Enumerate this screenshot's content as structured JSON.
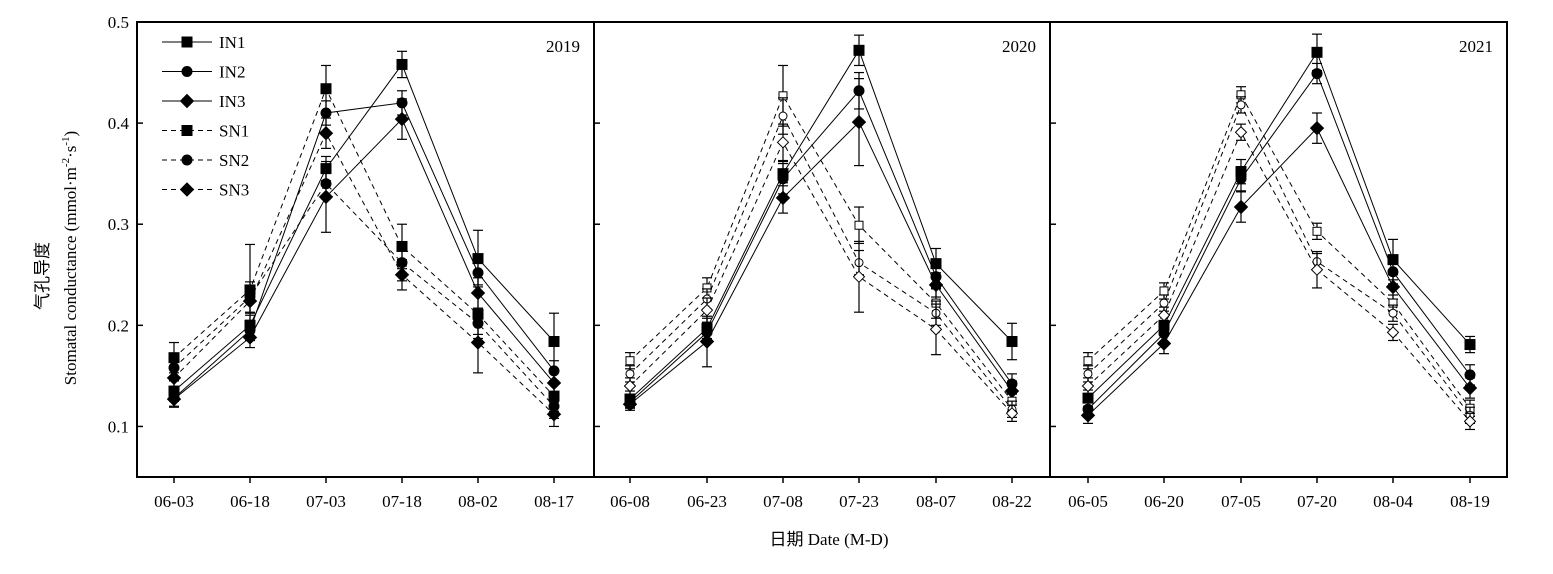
{
  "chart_data": {
    "type": "line",
    "y_axis": {
      "label_cn": "气孔导度",
      "label_en": "Stomatal conductance (mmol·m",
      "label_sup1": "-2",
      "label_mid": "·s",
      "label_sup2": "-1",
      "label_end": ")",
      "ylim": [
        0.05,
        0.5
      ],
      "ticks": [
        "0.1",
        "0.2",
        "0.3",
        "0.4",
        "0.5"
      ]
    },
    "x_axis": {
      "label": "日期 Date (M-D)"
    },
    "legend": {
      "placement": "top-left of first panel",
      "entries": [
        {
          "name": "IN1",
          "line": "solid",
          "marker": "square"
        },
        {
          "name": "IN2",
          "line": "solid",
          "marker": "circle"
        },
        {
          "name": "IN3",
          "line": "solid",
          "marker": "diamond"
        },
        {
          "name": "SN1",
          "line": "dashed",
          "marker": "square"
        },
        {
          "name": "SN2",
          "line": "dashed",
          "marker": "circle"
        },
        {
          "name": "SN3",
          "line": "dashed",
          "marker": "diamond"
        }
      ]
    },
    "panels": [
      {
        "year": "2019",
        "categories": [
          "06-03",
          "06-18",
          "07-03",
          "07-18",
          "08-02",
          "08-17"
        ],
        "sn_marker_fill": "filled",
        "series": [
          {
            "name": "IN1",
            "values": [
              0.135,
              0.2,
              0.355,
              0.458,
              0.266,
              0.184
            ],
            "err": [
              0.01,
              0.01,
              0.012,
              0.013,
              0.028,
              0.028
            ]
          },
          {
            "name": "IN2",
            "values": [
              0.128,
              0.195,
              0.41,
              0.42,
              0.252,
              0.155
            ],
            "err": [
              0.008,
              0.01,
              0.012,
              0.012,
              0.012,
              0.01
            ]
          },
          {
            "name": "IN3",
            "values": [
              0.127,
              0.188,
              0.327,
              0.404,
              0.232,
              0.143
            ],
            "err": [
              0.008,
              0.01,
              0.035,
              0.02,
              0.015,
              0.012
            ]
          },
          {
            "name": "SN1",
            "values": [
              0.168,
              0.235,
              0.434,
              0.278,
              0.211,
              0.13
            ],
            "err": [
              0.015,
              0.045,
              0.023,
              0.022,
              0.02,
              0.015
            ]
          },
          {
            "name": "SN2",
            "values": [
              0.158,
              0.228,
              0.34,
              0.262,
              0.202,
              0.12
            ],
            "err": [
              0.012,
              0.015,
              0.015,
              0.018,
              0.015,
              0.012
            ]
          },
          {
            "name": "SN3",
            "values": [
              0.148,
              0.224,
              0.39,
              0.25,
              0.183,
              0.112
            ],
            "err": [
              0.012,
              0.012,
              0.015,
              0.015,
              0.03,
              0.012
            ]
          }
        ]
      },
      {
        "year": "2020",
        "categories": [
          "06-08",
          "06-23",
          "07-08",
          "07-23",
          "08-07",
          "08-22"
        ],
        "sn_marker_fill": "open",
        "series": [
          {
            "name": "IN1",
            "values": [
              0.127,
              0.197,
              0.35,
              0.472,
              0.261,
              0.184
            ],
            "err": [
              0.008,
              0.01,
              0.012,
              0.015,
              0.015,
              0.018
            ]
          },
          {
            "name": "IN2",
            "values": [
              0.124,
              0.193,
              0.345,
              0.432,
              0.248,
              0.142
            ],
            "err": [
              0.006,
              0.01,
              0.015,
              0.018,
              0.012,
              0.01
            ]
          },
          {
            "name": "IN3",
            "values": [
              0.122,
              0.184,
              0.326,
              0.401,
              0.24,
              0.135
            ],
            "err": [
              0.006,
              0.025,
              0.015,
              0.043,
              0.012,
              0.01
            ]
          },
          {
            "name": "SN1",
            "values": [
              0.165,
              0.237,
              0.427,
              0.299,
              0.222,
              0.125
            ],
            "err": [
              0.008,
              0.01,
              0.03,
              0.018,
              0.015,
              0.01
            ]
          },
          {
            "name": "SN2",
            "values": [
              0.152,
              0.226,
              0.407,
              0.262,
              0.212,
              0.117
            ],
            "err": [
              0.008,
              0.01,
              0.018,
              0.012,
              0.012,
              0.008
            ]
          },
          {
            "name": "SN3",
            "values": [
              0.14,
              0.215,
              0.381,
              0.248,
              0.196,
              0.113
            ],
            "err": [
              0.008,
              0.012,
              0.018,
              0.035,
              0.025,
              0.008
            ]
          }
        ]
      },
      {
        "year": "2021",
        "categories": [
          "06-05",
          "06-20",
          "07-05",
          "07-20",
          "08-04",
          "08-19"
        ],
        "sn_marker_fill": "open",
        "series": [
          {
            "name": "IN1",
            "values": [
              0.128,
              0.2,
              0.352,
              0.47,
              0.265,
              0.181
            ],
            "err": [
              0.008,
              0.01,
              0.012,
              0.018,
              0.02,
              0.008
            ]
          },
          {
            "name": "IN2",
            "values": [
              0.117,
              0.192,
              0.345,
              0.449,
              0.253,
              0.151
            ],
            "err": [
              0.008,
              0.01,
              0.012,
              0.01,
              0.012,
              0.01
            ]
          },
          {
            "name": "IN3",
            "values": [
              0.111,
              0.182,
              0.317,
              0.395,
              0.238,
              0.138
            ],
            "err": [
              0.008,
              0.01,
              0.015,
              0.015,
              0.012,
              0.01
            ]
          },
          {
            "name": "SN1",
            "values": [
              0.165,
              0.234,
              0.428,
              0.293,
              0.222,
              0.118
            ],
            "err": [
              0.008,
              0.008,
              0.008,
              0.008,
              0.008,
              0.008
            ]
          },
          {
            "name": "SN2",
            "values": [
              0.152,
              0.222,
              0.418,
              0.263,
              0.212,
              0.111
            ],
            "err": [
              0.008,
              0.008,
              0.008,
              0.008,
              0.008,
              0.008
            ]
          },
          {
            "name": "SN3",
            "values": [
              0.14,
              0.21,
              0.391,
              0.255,
              0.193,
              0.105
            ],
            "err": [
              0.008,
              0.008,
              0.008,
              0.018,
              0.008,
              0.008
            ]
          }
        ]
      }
    ],
    "colors": {
      "line": "#000000",
      "axis_label_cn": "#3a3a3a"
    }
  }
}
